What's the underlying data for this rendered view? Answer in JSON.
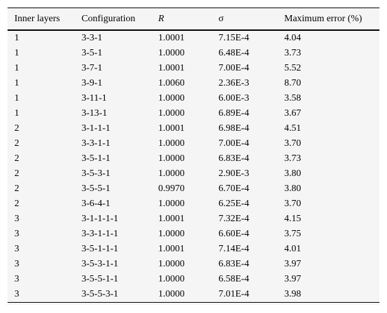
{
  "table": {
    "headers": [
      "Inner layers",
      "Configuration",
      "R",
      "σ",
      "Maximum error (%)"
    ],
    "rows": [
      [
        "1",
        "3-3-1",
        "1.0001",
        "7.15E-4",
        "4.04"
      ],
      [
        "1",
        "3-5-1",
        "1.0000",
        "6.48E-4",
        "3.73"
      ],
      [
        "1",
        "3-7-1",
        "1.0001",
        "7.00E-4",
        "5.52"
      ],
      [
        "1",
        "3-9-1",
        "1.0060",
        "2.36E-3",
        "8.70"
      ],
      [
        "1",
        "3-11-1",
        "1.0000",
        "6.00E-3",
        "3.58"
      ],
      [
        "1",
        "3-13-1",
        "1.0000",
        "6.89E-4",
        "3.67"
      ],
      [
        "2",
        "3-1-1-1",
        "1.0001",
        "6.98E-4",
        "4.51"
      ],
      [
        "2",
        "3-3-1-1",
        "1.0000",
        "7.00E-4",
        "3.70"
      ],
      [
        "2",
        "3-5-1-1",
        "1.0000",
        "6.83E-4",
        "3.73"
      ],
      [
        "2",
        "3-5-3-1",
        "1.0000",
        "2.90E-3",
        "3.80"
      ],
      [
        "2",
        "3-5-5-1",
        "0.9970",
        "6.70E-4",
        "3.80"
      ],
      [
        "2",
        "3-6-4-1",
        "1.0000",
        "6.25E-4",
        "3.70"
      ],
      [
        "3",
        "3-1-1-1-1",
        "1.0001",
        "7.32E-4",
        "4.15"
      ],
      [
        "3",
        "3-3-1-1-1",
        "1.0000",
        "6.60E-4",
        "3.75"
      ],
      [
        "3",
        "3-5-1-1-1",
        "1.0001",
        "7.14E-4",
        "4.01"
      ],
      [
        "3",
        "3-5-3-1-1",
        "1.0000",
        "6.83E-4",
        "3.97"
      ],
      [
        "3",
        "3-5-5-1-1",
        "1.0000",
        "6.58E-4",
        "3.97"
      ],
      [
        "3",
        "3-5-5-3-1",
        "1.0000",
        "7.01E-4",
        "3.98"
      ]
    ]
  }
}
